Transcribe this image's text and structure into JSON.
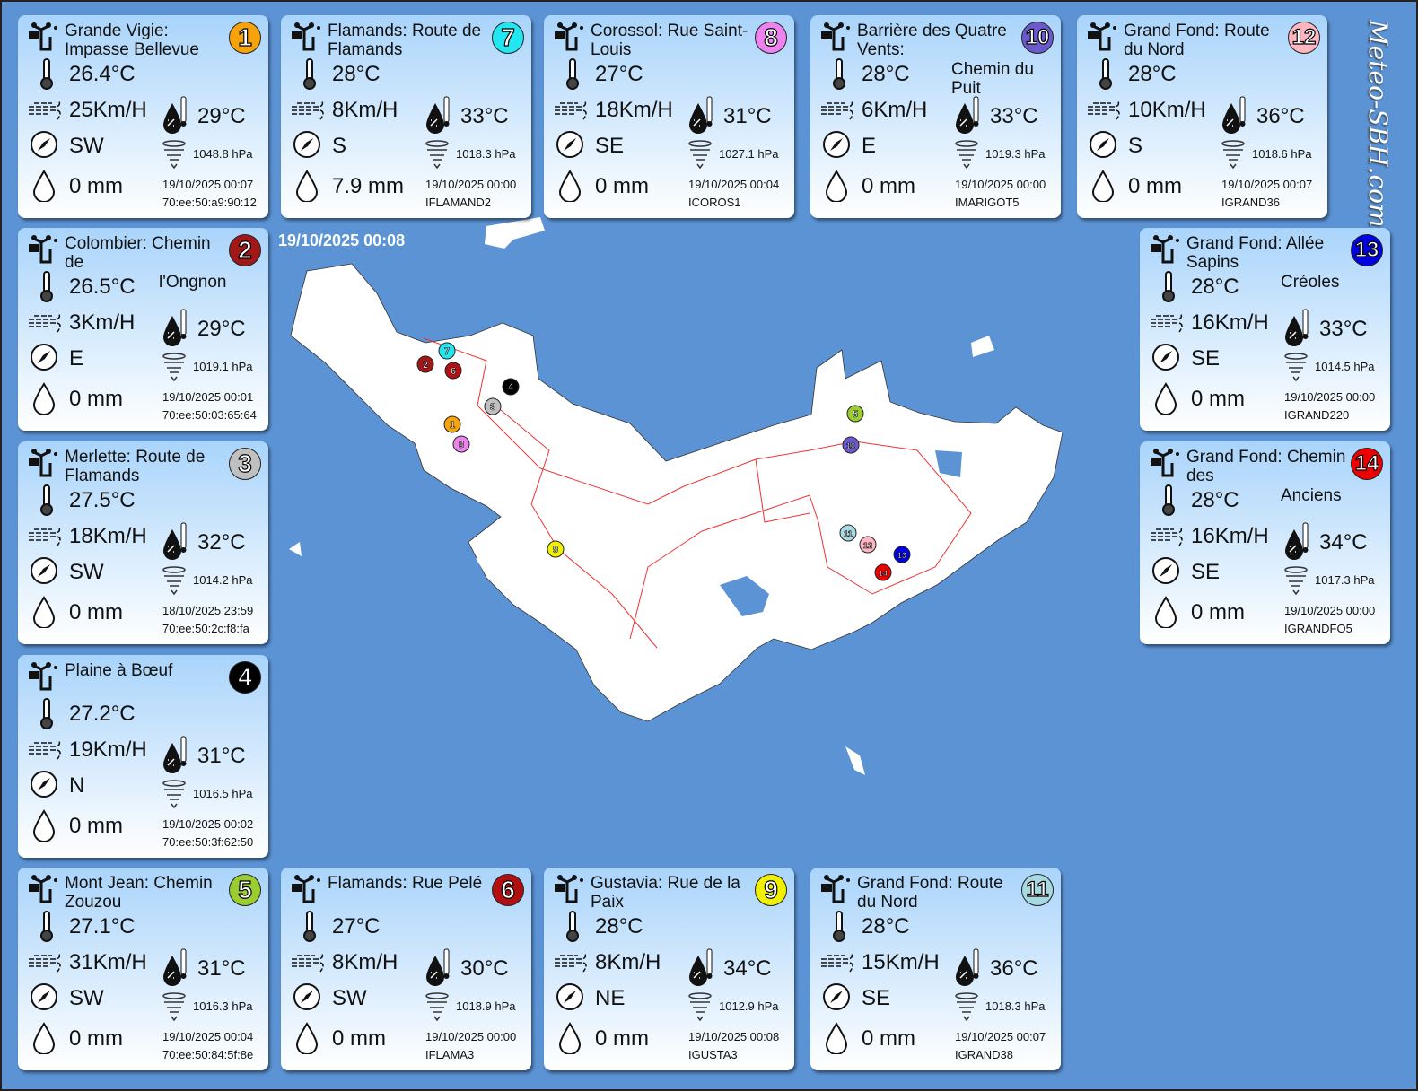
{
  "timestamp": "19/10/2025 00:08",
  "site": "Meteo-SBH.com",
  "stations": [
    {
      "num": "1",
      "color": "#f7a30c",
      "title": "Grande Vigie: Impasse Bellevue",
      "title_cont": "",
      "temp": "26.4°C",
      "wind": "25Km/H",
      "feels": "29°C",
      "dir": "SW",
      "pressure": "1048.8 hPa",
      "rain": "0 mm",
      "time": "19/10/2025 00:07",
      "id": "70:ee:50:a9:90:12"
    },
    {
      "num": "2",
      "color": "#a01818",
      "title": "Colombier: Chemin de",
      "title_cont": "l'Ongnon",
      "temp": "26.5°C",
      "wind": "3Km/H",
      "feels": "29°C",
      "dir": "E",
      "pressure": "1019.1 hPa",
      "rain": "0 mm",
      "time": "19/10/2025 00:01",
      "id": "70:ee:50:03:65:64"
    },
    {
      "num": "3",
      "color": "#c0c0c0",
      "title": "Merlette: Route de Flamands",
      "title_cont": "",
      "temp": "27.5°C",
      "wind": "18Km/H",
      "feels": "32°C",
      "dir": "SW",
      "pressure": "1014.2 hPa",
      "rain": "0 mm",
      "time": "18/10/2025 23:59",
      "id": "70:ee:50:2c:f8:fa"
    },
    {
      "num": "4",
      "color": "#000000",
      "title": "Plaine à Bœuf",
      "title_cont": "",
      "temp": "27.2°C",
      "wind": "19Km/H",
      "feels": "31°C",
      "dir": "N",
      "pressure": "1016.5 hPa",
      "rain": "0 mm",
      "time": "19/10/2025 00:02",
      "id": "70:ee:50:3f:62:50"
    },
    {
      "num": "5",
      "color": "#9acd32",
      "title": "Mont Jean: Chemin Zouzou",
      "title_cont": "",
      "temp": "27.1°C",
      "wind": "31Km/H",
      "feels": "31°C",
      "dir": "SW",
      "pressure": "1016.3 hPa",
      "rain": "0 mm",
      "time": "19/10/2025 00:04",
      "id": "70:ee:50:84:5f:8e"
    },
    {
      "num": "6",
      "color": "#b01010",
      "title": "Flamands: Rue Pelé",
      "title_cont": "",
      "temp": "27°C",
      "wind": "8Km/H",
      "feels": "30°C",
      "dir": "SW",
      "pressure": "1018.9 hPa",
      "rain": "0 mm",
      "time": "19/10/2025 00:00",
      "id": "IFLAMA3"
    },
    {
      "num": "7",
      "color": "#22e6f0",
      "title": "Flamands: Route de Flamands",
      "title_cont": "",
      "temp": "28°C",
      "wind": "8Km/H",
      "feels": "33°C",
      "dir": "S",
      "pressure": "1018.3 hPa",
      "rain": "7.9 mm",
      "time": "19/10/2025 00:00",
      "id": "IFLAMAND2"
    },
    {
      "num": "8",
      "color": "#ee82ee",
      "title": "Corossol: Rue Saint-Louis",
      "title_cont": "",
      "temp": "27°C",
      "wind": "18Km/H",
      "feels": "31°C",
      "dir": "SE",
      "pressure": "1027.1 hPa",
      "rain": "0 mm",
      "time": "19/10/2025 00:04",
      "id": "ICOROS1"
    },
    {
      "num": "9",
      "color": "#f0f000",
      "title": "Gustavia: Rue de la Paix",
      "title_cont": "",
      "temp": "28°C",
      "wind": "8Km/H",
      "feels": "34°C",
      "dir": "NE",
      "pressure": "1012.9 hPa",
      "rain": "0 mm",
      "time": "19/10/2025 00:08",
      "id": "IGUSTA3"
    },
    {
      "num": "10",
      "color": "#6a5acd",
      "title": "Barrière des Quatre Vents:",
      "title_cont": "Chemin du Puit",
      "temp": "28°C",
      "wind": "6Km/H",
      "feels": "33°C",
      "dir": "E",
      "pressure": "1019.3 hPa",
      "rain": "0 mm",
      "time": "19/10/2025 00:00",
      "id": "IMARIGOT5"
    },
    {
      "num": "11",
      "color": "#a8d8e0",
      "title": "Grand Fond: Route du Nord",
      "title_cont": "",
      "temp": "28°C",
      "wind": "15Km/H",
      "feels": "36°C",
      "dir": "SE",
      "pressure": "1018.3 hPa",
      "rain": "0 mm",
      "time": "19/10/2025 00:07",
      "id": "IGRAND38"
    },
    {
      "num": "12",
      "color": "#ffb6c1",
      "title": "Grand Fond: Route du Nord",
      "title_cont": "",
      "temp": "28°C",
      "wind": "10Km/H",
      "feels": "36°C",
      "dir": "S",
      "pressure": "1018.6 hPa",
      "rain": "0 mm",
      "time": "19/10/2025 00:07",
      "id": "IGRAND36"
    },
    {
      "num": "13",
      "color": "#0000e0",
      "title": "Grand Fond: Allée Sapins",
      "title_cont": "Créoles",
      "temp": "28°C",
      "wind": "16Km/H",
      "feels": "33°C",
      "dir": "SE",
      "pressure": "1014.5 hPa",
      "rain": "0 mm",
      "time": "19/10/2025 00:00",
      "id": "IGRAND220"
    },
    {
      "num": "14",
      "color": "#ee0000",
      "title": "Grand Fond: Chemin des",
      "title_cont": "Anciens",
      "temp": "28°C",
      "wind": "16Km/H",
      "feels": "34°C",
      "dir": "SE",
      "pressure": "1017.3 hPa",
      "rain": "0 mm",
      "time": "19/10/2025 00:00",
      "id": "IGRANDFO5"
    }
  ]
}
